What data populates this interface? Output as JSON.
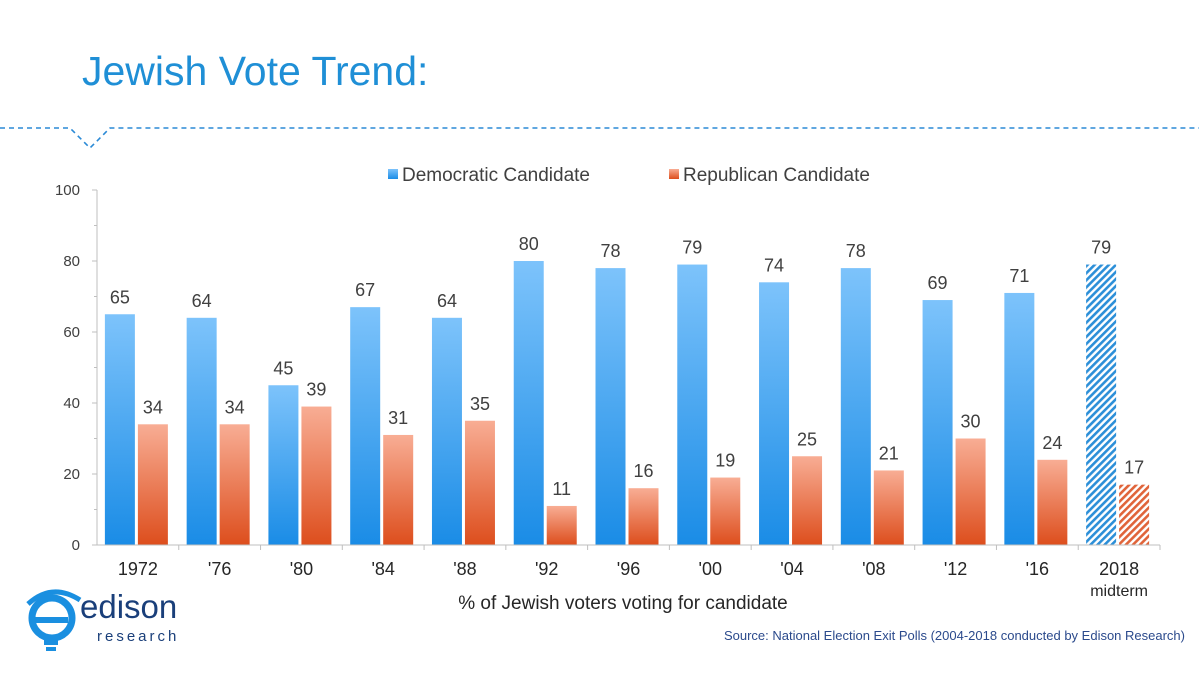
{
  "page": {
    "title": "Jewish Vote Trend:",
    "source": "Source: National Election Exit Polls (2004-2018 conducted by Edison Research)"
  },
  "logo": {
    "brand": "edison",
    "sub": "research",
    "icon": "edison-bulb-logo-icon"
  },
  "colors": {
    "title": "#1f8fd6",
    "democratic": "#3a9be6",
    "republican": "#ea6a45",
    "divider": "#2b8ad6",
    "source": "#2b4a8c"
  },
  "chart_data": {
    "type": "bar",
    "title": "",
    "xlabel": "% of Jewish voters voting for candidate",
    "ylabel": "",
    "ylim": [
      0,
      100
    ],
    "yticks": [
      0,
      20,
      40,
      60,
      80,
      100
    ],
    "grid": false,
    "legend_position": "top",
    "categories": [
      "1972",
      "'76",
      "'80",
      "'84",
      "'88",
      "'92",
      "'96",
      "'00",
      "'04",
      "'08",
      "'12",
      "'16",
      "2018"
    ],
    "category_sublabels": [
      "",
      "",
      "",
      "",
      "",
      "",
      "",
      "",
      "",
      "",
      "",
      "",
      "midterm"
    ],
    "series": [
      {
        "name": "Democratic Candidate",
        "values": [
          65,
          64,
          45,
          67,
          64,
          80,
          78,
          79,
          74,
          78,
          69,
          71,
          79
        ]
      },
      {
        "name": "Republican Candidate",
        "values": [
          34,
          34,
          39,
          31,
          35,
          11,
          16,
          19,
          25,
          21,
          30,
          24,
          17
        ]
      }
    ],
    "hatched_categories": [
      "2018"
    ]
  }
}
